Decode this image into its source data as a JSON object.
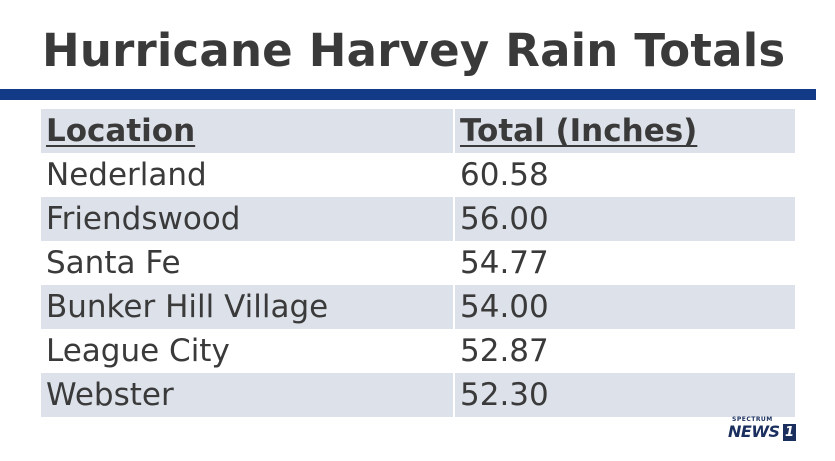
{
  "title": "Hurricane Harvey Rain Totals",
  "colors": {
    "rule": "#123a87",
    "row_shade": "#dde2ea",
    "text": "#3a3a3a",
    "logo": "#1a2f5e"
  },
  "chart_data": {
    "type": "table",
    "title": "Hurricane Harvey Rain Totals",
    "columns": [
      "Location",
      "Total (Inches)"
    ],
    "rows": [
      [
        "Nederland",
        "60.58"
      ],
      [
        "Friendswood",
        "56.00"
      ],
      [
        "Santa Fe",
        "54.77"
      ],
      [
        "Bunker Hill Village",
        "54.00"
      ],
      [
        "League City",
        "52.87"
      ],
      [
        "Webster",
        "52.30"
      ]
    ]
  },
  "logo": {
    "brand_small": "SPECTRUM",
    "brand_big": "NEWS",
    "brand_number": "1"
  }
}
